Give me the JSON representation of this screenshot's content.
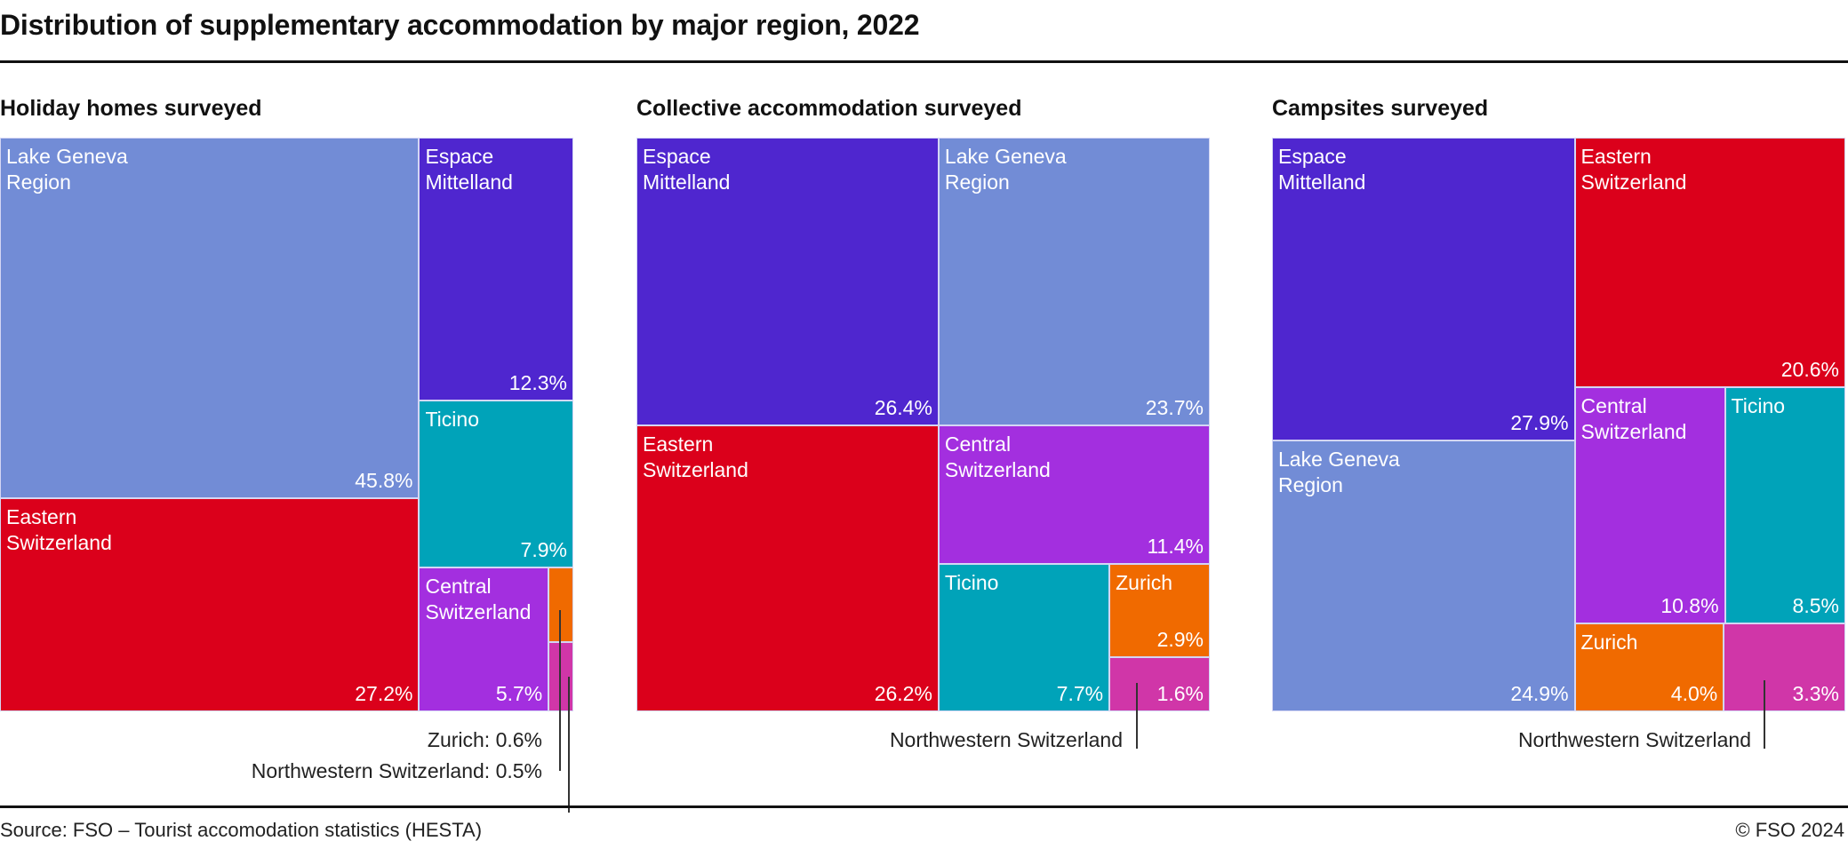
{
  "title": "Distribution of supplementary accommodation by major region, 2022",
  "source": "Source: FSO – Tourist accomodation statistics (HESTA)",
  "copyright": "© FSO 2024",
  "colors": {
    "Lake Geneva Region": "#728cd6",
    "Espace Mittelland": "#4f26cf",
    "Eastern Switzerland": "#db001b",
    "Ticino": "#00a3b9",
    "Central Switzerland": "#a32fdf",
    "Zurich": "#f06a00",
    "Northwestern Switzerland": "#d036a8"
  },
  "chart_data": [
    {
      "type": "treemap",
      "title": "Holiday homes surveyed",
      "unit": "%",
      "items": [
        {
          "region": "Lake Geneva Region",
          "label": "Lake Geneva\nRegion",
          "value": 45.8,
          "value_label": "45.8%"
        },
        {
          "region": "Eastern Switzerland",
          "label": "Eastern\nSwitzerland",
          "value": 27.2,
          "value_label": "27.2%"
        },
        {
          "region": "Espace Mittelland",
          "label": "Espace\nMittelland",
          "value": 12.3,
          "value_label": "12.3%"
        },
        {
          "region": "Ticino",
          "label": "Ticino",
          "value": 7.9,
          "value_label": "7.9%"
        },
        {
          "region": "Central Switzerland",
          "label": "Central\nSwitzerland",
          "value": 5.7,
          "value_label": "5.7%"
        },
        {
          "region": "Zurich",
          "label": "",
          "value": 0.6,
          "value_label": "",
          "callout": "Zurich: 0.6%"
        },
        {
          "region": "Northwestern Switzerland",
          "label": "",
          "value": 0.5,
          "value_label": "",
          "callout": "Northwestern Switzerland: 0.5%"
        }
      ]
    },
    {
      "type": "treemap",
      "title": "Collective accommodation surveyed",
      "unit": "%",
      "items": [
        {
          "region": "Espace Mittelland",
          "label": "Espace\nMittelland",
          "value": 26.4,
          "value_label": "26.4%"
        },
        {
          "region": "Eastern Switzerland",
          "label": "Eastern\nSwitzerland",
          "value": 26.2,
          "value_label": "26.2%"
        },
        {
          "region": "Lake Geneva Region",
          "label": "Lake Geneva\nRegion",
          "value": 23.7,
          "value_label": "23.7%"
        },
        {
          "region": "Central Switzerland",
          "label": "Central\nSwitzerland",
          "value": 11.4,
          "value_label": "11.4%"
        },
        {
          "region": "Ticino",
          "label": "Ticino",
          "value": 7.7,
          "value_label": "7.7%"
        },
        {
          "region": "Zurich",
          "label": "Zurich",
          "value": 2.9,
          "value_label": "2.9%"
        },
        {
          "region": "Northwestern Switzerland",
          "label": "",
          "value": 1.6,
          "value_label": "1.6%",
          "callout": "Northwestern Switzerland"
        }
      ]
    },
    {
      "type": "treemap",
      "title": "Campsites surveyed",
      "unit": "%",
      "items": [
        {
          "region": "Espace Mittelland",
          "label": "Espace\nMittelland",
          "value": 27.9,
          "value_label": "27.9%"
        },
        {
          "region": "Lake Geneva Region",
          "label": "Lake Geneva\nRegion",
          "value": 24.9,
          "value_label": "24.9%"
        },
        {
          "region": "Eastern Switzerland",
          "label": "Eastern\nSwitzerland",
          "value": 20.6,
          "value_label": "20.6%"
        },
        {
          "region": "Central Switzerland",
          "label": "Central\nSwitzerland",
          "value": 10.8,
          "value_label": "10.8%"
        },
        {
          "region": "Ticino",
          "label": "Ticino",
          "value": 8.5,
          "value_label": "8.5%"
        },
        {
          "region": "Zurich",
          "label": "Zurich",
          "value": 4.0,
          "value_label": "4.0%"
        },
        {
          "region": "Northwestern Switzerland",
          "label": "",
          "value": 3.3,
          "value_label": "3.3%",
          "callout": "Northwestern Switzerland"
        }
      ]
    }
  ]
}
